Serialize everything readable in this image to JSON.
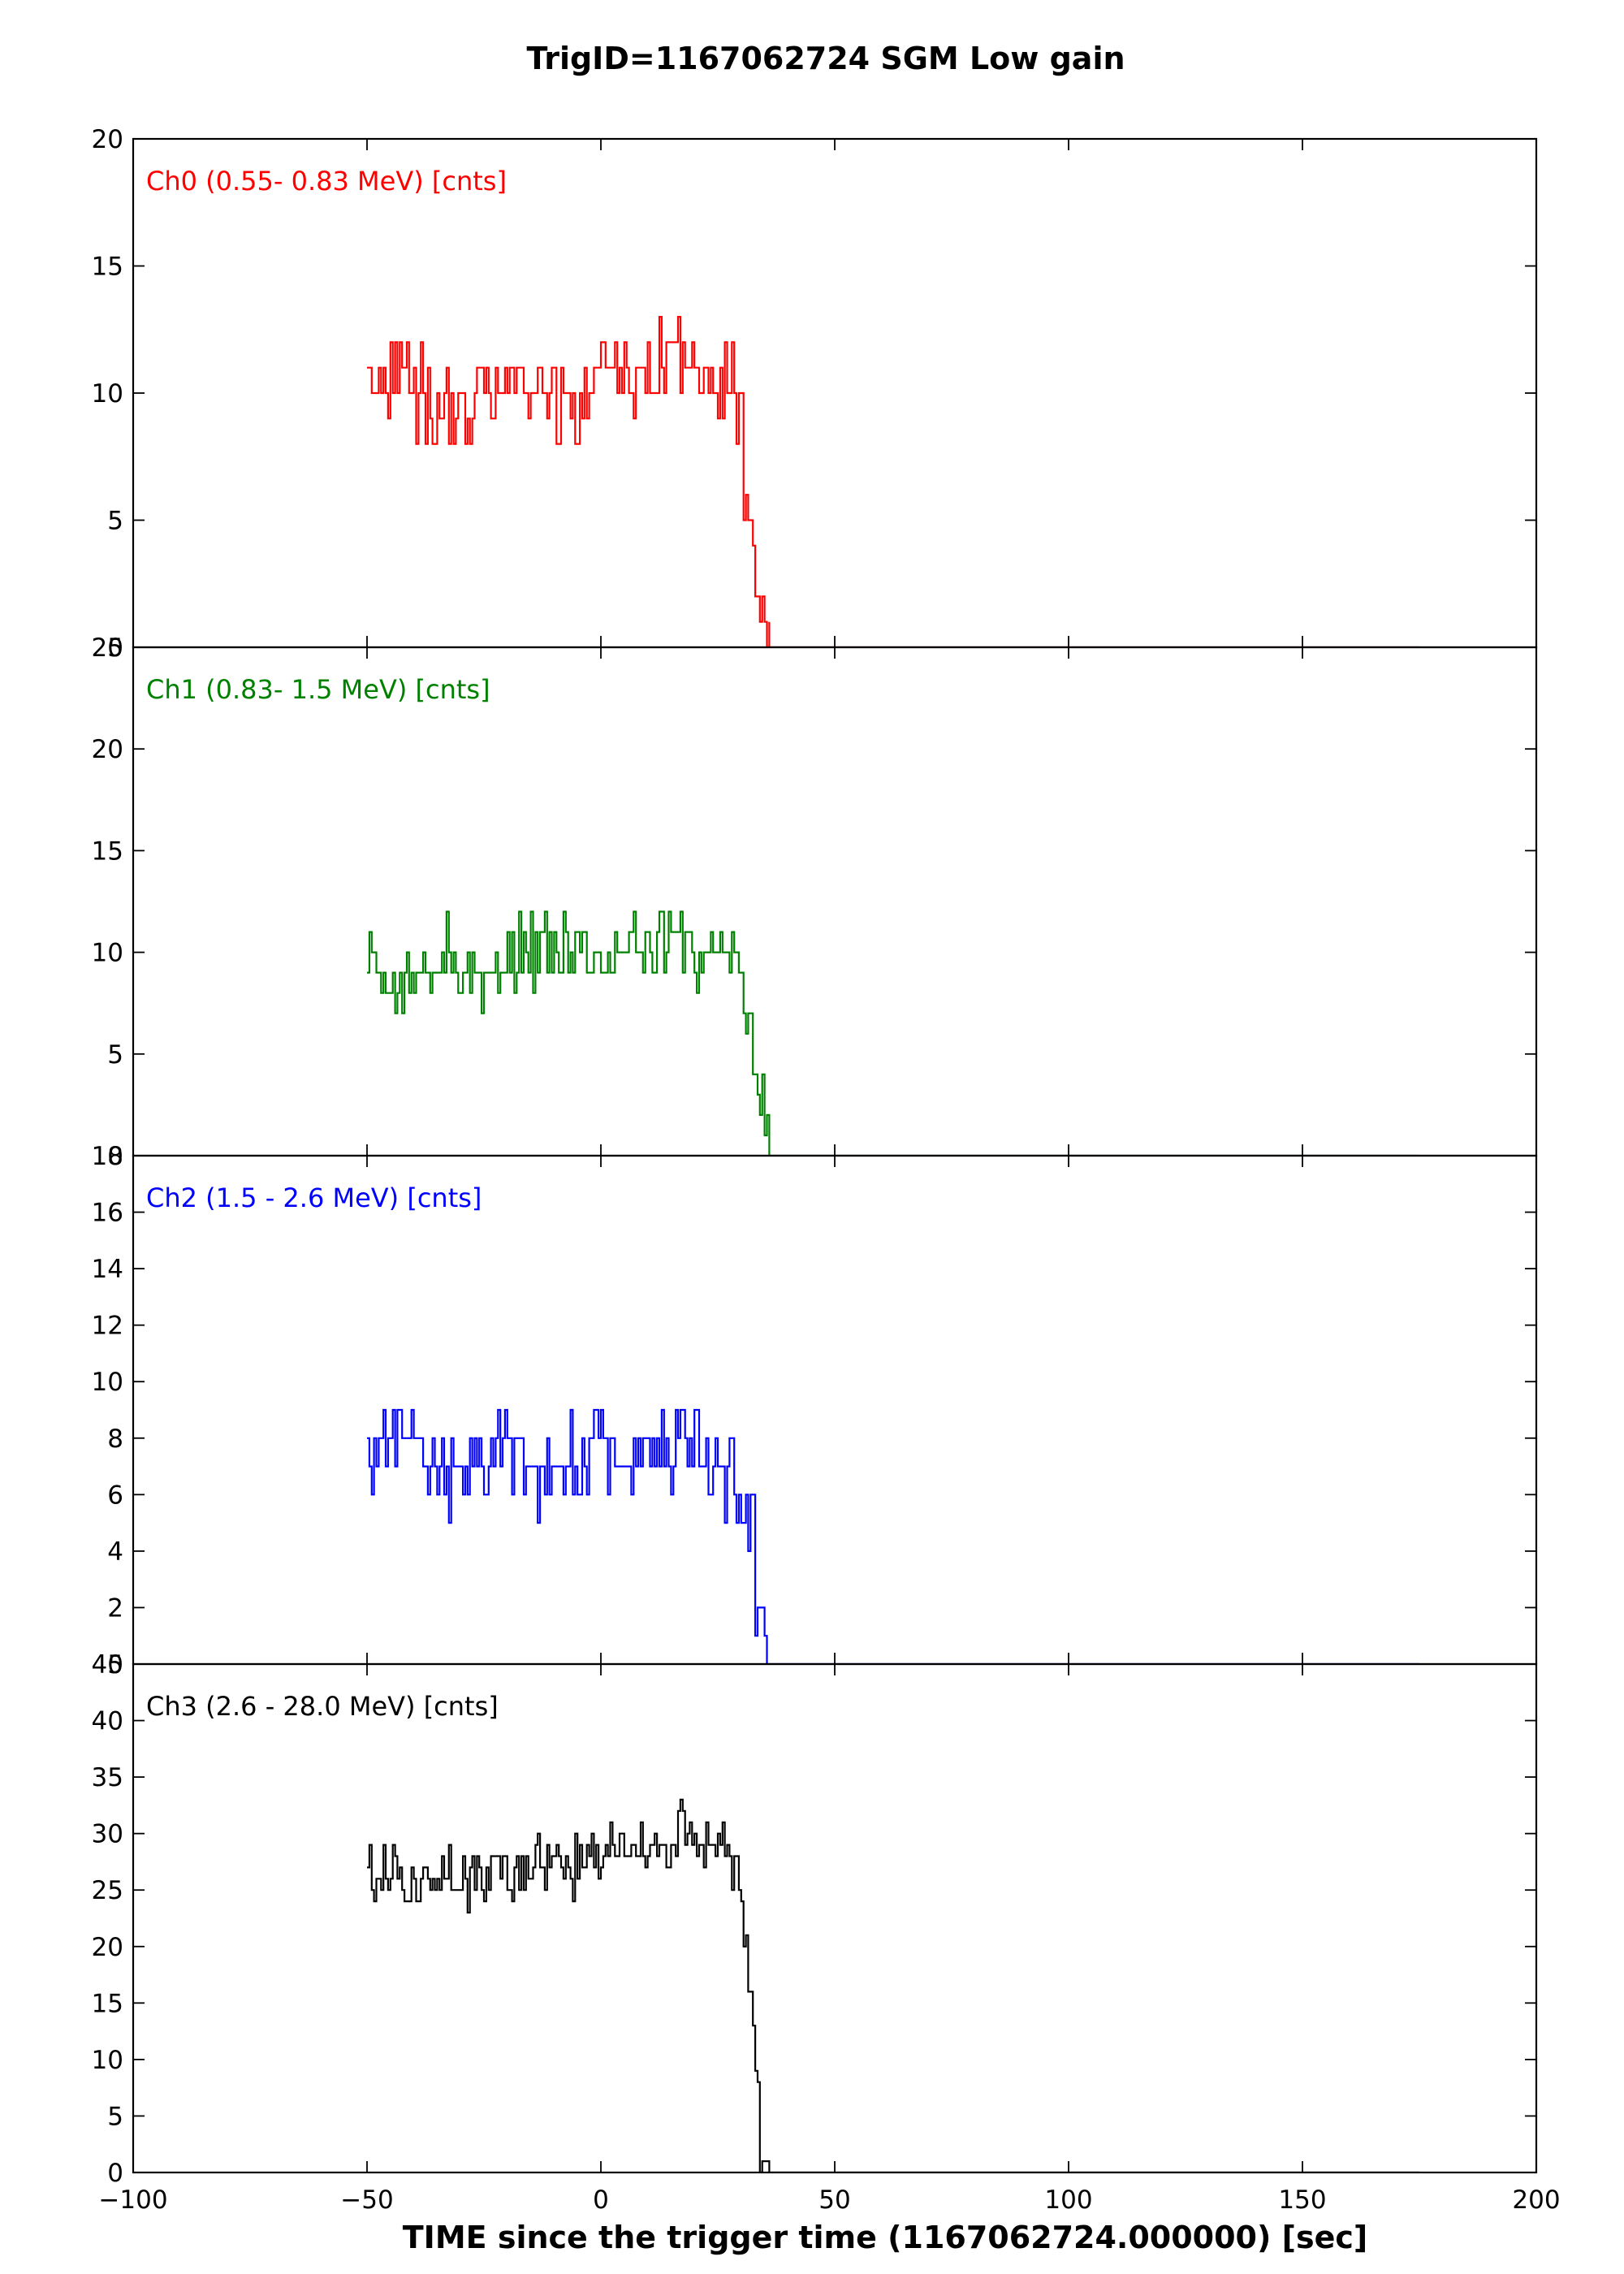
{
  "title": "TrigID=1167062724 SGM Low gain",
  "xlabel": "TIME since the trigger time (1167062724.000000) [sec]",
  "chart_data": {
    "type": "line",
    "style": "step",
    "shared_x": true,
    "xlim": [
      -100,
      200
    ],
    "xticks": [
      -100,
      -50,
      0,
      50,
      100,
      150,
      200
    ],
    "xtick_labels": [
      "−100",
      "−50",
      "0",
      "50",
      "100",
      "150",
      "200"
    ],
    "grid": false,
    "panels": [
      {
        "name": "Ch0 (0.55- 0.83 MeV) [cnts]",
        "color": "#ff0000",
        "ylim": [
          0,
          20
        ],
        "yticks": [
          0,
          5,
          10,
          15,
          20
        ],
        "ytick_labels": [
          "0",
          "5",
          "10",
          "15",
          "20"
        ],
        "x": [
          -50,
          -45,
          -40,
          -35,
          -30,
          -25,
          -20,
          -15,
          -10,
          -5,
          0,
          5,
          10,
          15,
          20,
          25,
          28,
          30,
          31,
          32,
          33,
          34,
          35,
          40,
          60,
          100,
          150,
          175
        ],
        "values": [
          10,
          11,
          10,
          9,
          10,
          10,
          11,
          10,
          10,
          9,
          11,
          11,
          10,
          12,
          11,
          10,
          11,
          8,
          6,
          4,
          3,
          2,
          0.5,
          0,
          0,
          0,
          0,
          0
        ]
      },
      {
        "name": "Ch1 (0.83-  1.5 MeV) [cnts]",
        "color": "#008000",
        "ylim": [
          0,
          25
        ],
        "yticks": [
          0,
          5,
          10,
          15,
          20,
          25
        ],
        "ytick_labels": [
          "0",
          "5",
          "10",
          "15",
          "20",
          "25"
        ],
        "x": [
          -50,
          -45,
          -40,
          -35,
          -30,
          -25,
          -20,
          -15,
          -10,
          -5,
          0,
          5,
          10,
          15,
          20,
          25,
          28,
          30,
          31,
          32,
          33,
          34,
          35,
          40,
          60,
          100,
          150,
          175
        ],
        "values": [
          9,
          9,
          9,
          9,
          9,
          9,
          10,
          10,
          10,
          10,
          10,
          10,
          10,
          11,
          10,
          10,
          10,
          8,
          7,
          6,
          4,
          3,
          1,
          0,
          0,
          0,
          0,
          0
        ]
      },
      {
        "name": "Ch2 (1.5 -  2.6 MeV) [cnts]",
        "color": "#0000ff",
        "ylim": [
          0,
          18
        ],
        "yticks": [
          0,
          2,
          4,
          6,
          8,
          10,
          12,
          14,
          16,
          18
        ],
        "ytick_labels": [
          "0",
          "2",
          "4",
          "6",
          "8",
          "10",
          "12",
          "14",
          "16",
          "18"
        ],
        "x": [
          -50,
          -45,
          -40,
          -35,
          -30,
          -25,
          -20,
          -15,
          -10,
          -5,
          0,
          5,
          10,
          15,
          20,
          25,
          28,
          30,
          31,
          32,
          33,
          34,
          35,
          40,
          60,
          100,
          150,
          175
        ],
        "values": [
          7,
          8,
          8,
          7,
          7,
          7,
          8,
          7,
          7,
          7,
          8,
          7,
          8,
          8,
          8,
          7,
          7,
          6,
          5,
          4,
          3,
          2,
          0.5,
          0,
          0,
          0,
          0,
          0
        ]
      },
      {
        "name": "Ch3 (2.6 - 28.0 MeV) [cnts]",
        "color": "#000000",
        "ylim": [
          0,
          45
        ],
        "yticks": [
          0,
          5,
          10,
          15,
          20,
          25,
          30,
          35,
          40,
          45
        ],
        "ytick_labels": [
          "0",
          "5",
          "10",
          "15",
          "20",
          "25",
          "30",
          "35",
          "40",
          "45"
        ],
        "x": [
          -50,
          -45,
          -40,
          -35,
          -30,
          -25,
          -20,
          -15,
          -10,
          -5,
          0,
          5,
          10,
          15,
          20,
          25,
          28,
          30,
          31,
          32,
          33,
          34,
          35,
          40,
          60,
          100,
          150,
          175
        ],
        "values": [
          27,
          26,
          26,
          26,
          26,
          26,
          27,
          27,
          28,
          28,
          29,
          29,
          29,
          30,
          29,
          29,
          29,
          24,
          20,
          15,
          9,
          3,
          1,
          0,
          0,
          0,
          0,
          0
        ]
      }
    ]
  }
}
